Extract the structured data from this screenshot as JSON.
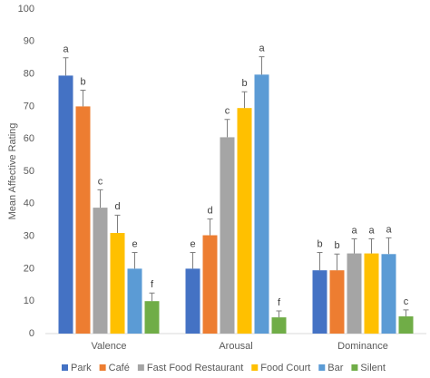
{
  "chart_data": {
    "type": "bar",
    "y_label": "Mean Affective Rating",
    "categories": [
      "Valence",
      "Arousal",
      "Dominance"
    ],
    "ylim": [
      0,
      100
    ],
    "yticks": [
      0,
      10,
      20,
      30,
      40,
      50,
      60,
      70,
      80,
      90,
      100
    ],
    "grid": false,
    "legend": "bottom",
    "series": [
      {
        "name": "Park",
        "color": "#4472c4",
        "values": [
          79.5,
          20,
          19.5
        ],
        "errors": [
          5.5,
          5,
          5.5
        ],
        "labels": [
          "a",
          "e",
          "b"
        ]
      },
      {
        "name": "Café",
        "color": "#ed7d31",
        "values": [
          70,
          30.3,
          19.5
        ],
        "errors": [
          5,
          5,
          5
        ],
        "labels": [
          "b",
          "d",
          "b"
        ]
      },
      {
        "name": "Fast Food Restaurant",
        "color": "#a5a5a5",
        "values": [
          38.8,
          60.5,
          24.7
        ],
        "errors": [
          5.5,
          5.5,
          4.5
        ],
        "labels": [
          "c",
          "c",
          "a"
        ]
      },
      {
        "name": "Food Court",
        "color": "#ffc000",
        "values": [
          31,
          69.5,
          24.7
        ],
        "errors": [
          5.5,
          5,
          4.5
        ],
        "labels": [
          "d",
          "b",
          "a"
        ]
      },
      {
        "name": "Bar",
        "color": "#5b9bd5",
        "values": [
          20,
          79.8,
          24.5
        ],
        "errors": [
          5,
          5.5,
          5
        ],
        "labels": [
          "e",
          "a",
          "a"
        ]
      },
      {
        "name": "Silent",
        "color": "#70ad47",
        "values": [
          10,
          5,
          5.3
        ],
        "errors": [
          2.5,
          2,
          2
        ],
        "labels": [
          "f",
          "f",
          "c"
        ]
      }
    ]
  }
}
